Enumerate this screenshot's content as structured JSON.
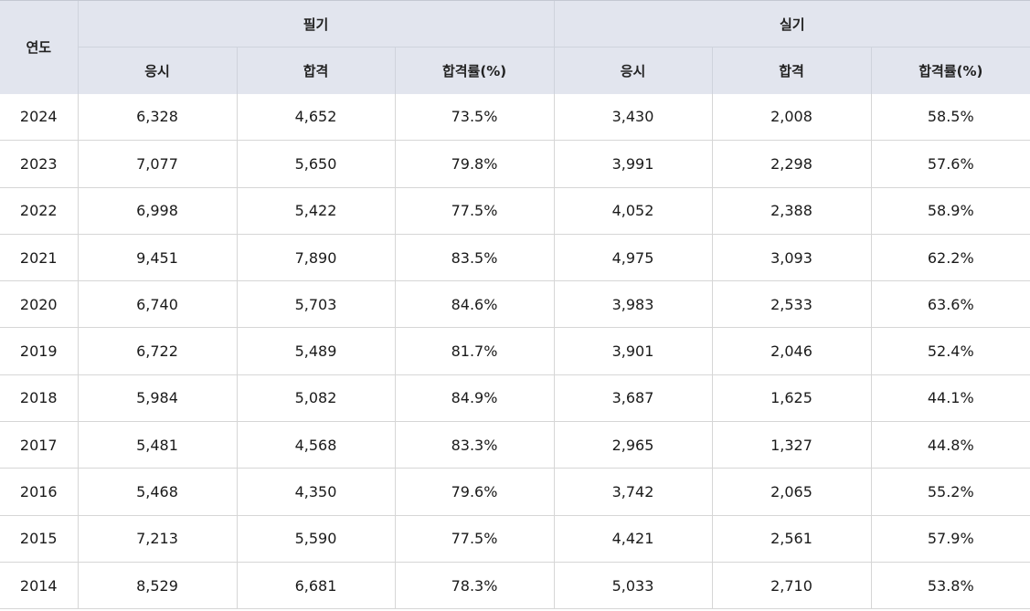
{
  "header": {
    "year": "연도",
    "groups": [
      "필기",
      "실기"
    ],
    "sub": [
      "응시",
      "합격",
      "합격률(%)",
      "응시",
      "합격",
      "합격률(%)"
    ]
  },
  "rows": [
    {
      "year": "2024",
      "cells": [
        "6,328",
        "4,652",
        "73.5%",
        "3,430",
        "2,008",
        "58.5%"
      ]
    },
    {
      "year": "2023",
      "cells": [
        "7,077",
        "5,650",
        "79.8%",
        "3,991",
        "2,298",
        "57.6%"
      ]
    },
    {
      "year": "2022",
      "cells": [
        "6,998",
        "5,422",
        "77.5%",
        "4,052",
        "2,388",
        "58.9%"
      ]
    },
    {
      "year": "2021",
      "cells": [
        "9,451",
        "7,890",
        "83.5%",
        "4,975",
        "3,093",
        "62.2%"
      ]
    },
    {
      "year": "2020",
      "cells": [
        "6,740",
        "5,703",
        "84.6%",
        "3,983",
        "2,533",
        "63.6%"
      ]
    },
    {
      "year": "2019",
      "cells": [
        "6,722",
        "5,489",
        "81.7%",
        "3,901",
        "2,046",
        "52.4%"
      ]
    },
    {
      "year": "2018",
      "cells": [
        "5,984",
        "5,082",
        "84.9%",
        "3,687",
        "1,625",
        "44.1%"
      ]
    },
    {
      "year": "2017",
      "cells": [
        "5,481",
        "4,568",
        "83.3%",
        "2,965",
        "1,327",
        "44.8%"
      ]
    },
    {
      "year": "2016",
      "cells": [
        "5,468",
        "4,350",
        "79.6%",
        "3,742",
        "2,065",
        "55.2%"
      ]
    },
    {
      "year": "2015",
      "cells": [
        "7,213",
        "5,590",
        "77.5%",
        "4,421",
        "2,561",
        "57.9%"
      ]
    },
    {
      "year": "2014",
      "cells": [
        "8,529",
        "6,681",
        "78.3%",
        "5,033",
        "2,710",
        "53.8%"
      ]
    }
  ]
}
